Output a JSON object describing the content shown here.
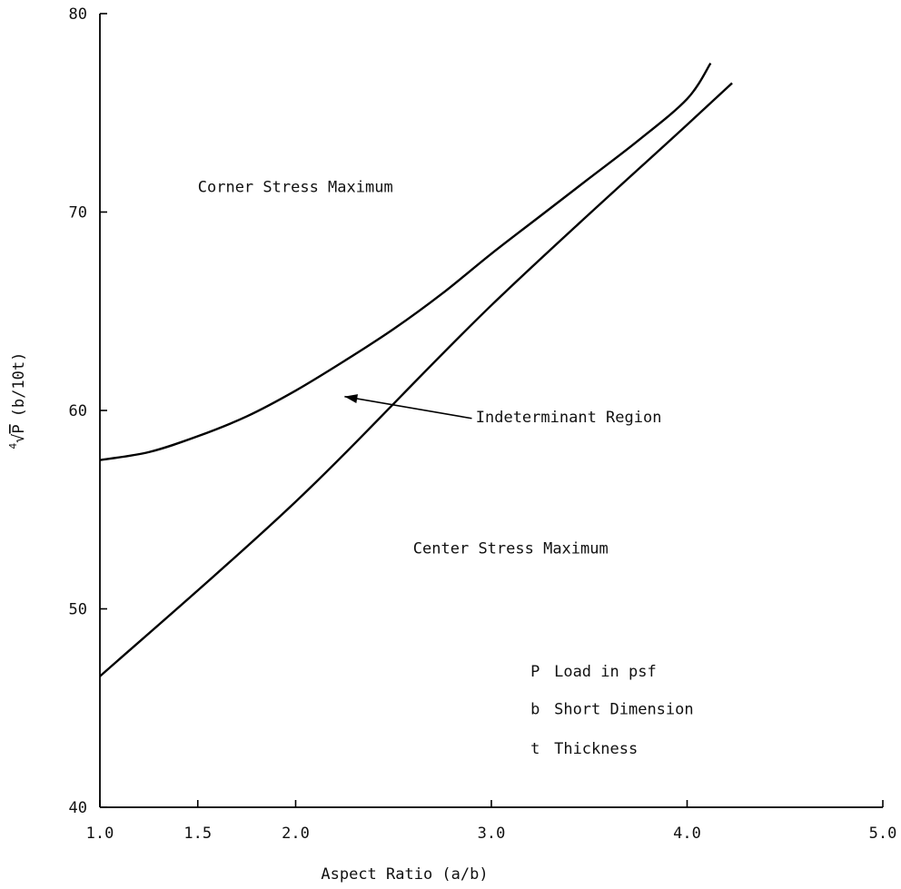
{
  "chart_data": {
    "type": "line",
    "title": "",
    "xlabel": "Aspect Ratio (a/b)",
    "ylabel": {
      "root_index": "4",
      "radicand": "P",
      "rest": "(b/10t)"
    },
    "xlim": [
      1.0,
      5.0
    ],
    "ylim": [
      40,
      80
    ],
    "grid": false,
    "x_ticks": [
      {
        "value": 1.0,
        "label": "1.0"
      },
      {
        "value": 1.5,
        "label": "1.5"
      },
      {
        "value": 2.0,
        "label": "2.0"
      },
      {
        "value": 3.0,
        "label": "3.0"
      },
      {
        "value": 4.0,
        "label": "4.0"
      },
      {
        "value": 5.0,
        "label": "5.0"
      }
    ],
    "y_ticks": [
      {
        "value": 40,
        "label": "40"
      },
      {
        "value": 50,
        "label": "50"
      },
      {
        "value": 60,
        "label": "60"
      },
      {
        "value": 70,
        "label": "70"
      },
      {
        "value": 80,
        "label": "80"
      }
    ],
    "series": [
      {
        "key": "upper",
        "color": "#000000",
        "points": [
          [
            1.0,
            57.5
          ],
          [
            1.25,
            57.9
          ],
          [
            1.5,
            58.7
          ],
          [
            1.75,
            59.7
          ],
          [
            2.0,
            61.0
          ],
          [
            2.25,
            62.5
          ],
          [
            2.5,
            64.1
          ],
          [
            2.75,
            65.9
          ],
          [
            3.0,
            67.9
          ],
          [
            3.25,
            69.8
          ],
          [
            3.5,
            71.7
          ],
          [
            3.75,
            73.6
          ],
          [
            4.0,
            75.7
          ],
          [
            4.12,
            77.5
          ]
        ]
      },
      {
        "key": "lower",
        "color": "#000000",
        "points": [
          [
            1.0,
            46.6
          ],
          [
            2.0,
            55.4
          ],
          [
            3.0,
            65.3
          ],
          [
            4.0,
            74.4
          ],
          [
            4.23,
            76.5
          ]
        ]
      }
    ],
    "regions": [
      {
        "text": "Corner Stress Maximum",
        "x": 1.5,
        "y": 71.0
      },
      {
        "text": "Center Stress Maximum",
        "x": 2.6,
        "y": 52.8
      }
    ],
    "annotation": {
      "text": "Indeterminant Region",
      "text_at": [
        2.92,
        59.4
      ],
      "arrow_from": [
        2.9,
        59.6
      ],
      "arrow_to": [
        2.25,
        60.7
      ]
    },
    "legend": [
      {
        "symbol": "P",
        "text": "Load in psf",
        "x": 3.2,
        "y": 46.6
      },
      {
        "symbol": "b",
        "text": "Short Dimension",
        "x": 3.2,
        "y": 44.7
      },
      {
        "symbol": "t",
        "text": "Thickness",
        "x": 3.2,
        "y": 42.7
      }
    ]
  }
}
